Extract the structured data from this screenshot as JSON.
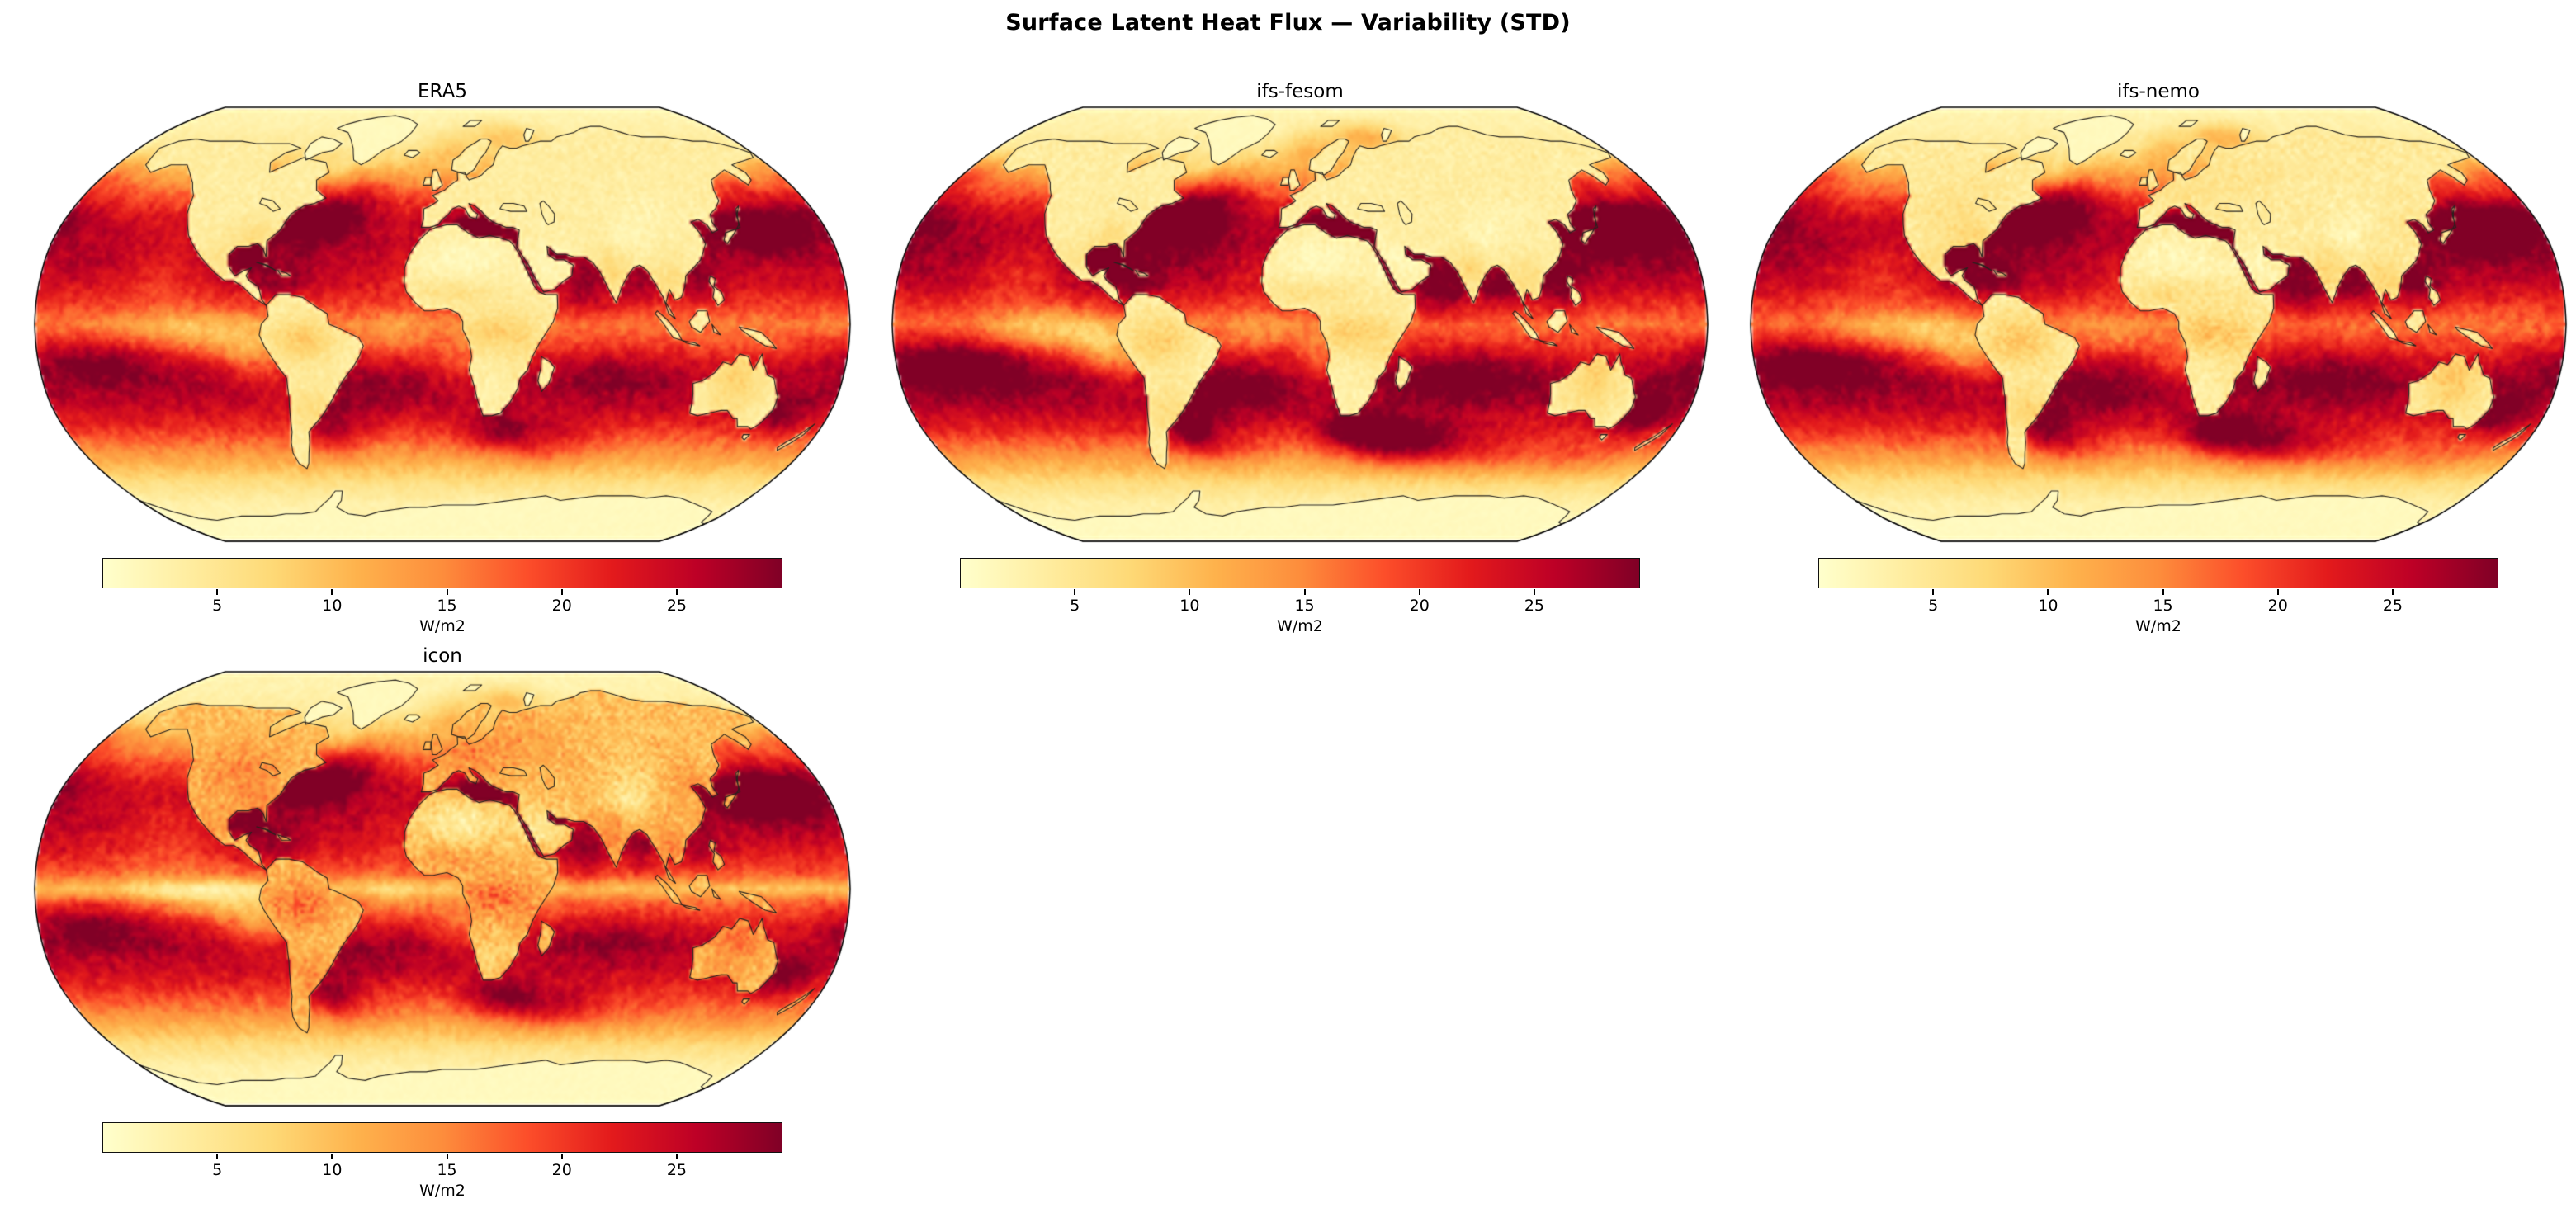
{
  "figure": {
    "title": "Surface Latent Heat Flux — Variability (STD)",
    "background_color": "#ffffff",
    "text_color": "#000000"
  },
  "chart_data": {
    "type": "heatmap",
    "subtype": "global-map-small-multiples",
    "projection": "Robinson",
    "basemap": "world-coastlines",
    "grid": {
      "rows": 2,
      "cols": 3,
      "occupied_cells": [
        [
          0,
          0
        ],
        [
          0,
          1
        ],
        [
          0,
          2
        ],
        [
          1,
          0
        ]
      ]
    },
    "colormap": {
      "name": "YlOrRd",
      "stops": [
        "#ffffcc",
        "#ffeda0",
        "#fed976",
        "#feb24c",
        "#fd8d3c",
        "#fc4e2a",
        "#e31a1c",
        "#bd0026",
        "#800026"
      ]
    },
    "colorbar": {
      "label": "W/m2",
      "ticks": [
        5,
        10,
        15,
        20,
        25
      ],
      "vmin": 0,
      "vmax": 29.6,
      "orientation": "horizontal"
    },
    "panels": [
      {
        "id": "era5",
        "title": "ERA5",
        "render": {
          "seed": 11,
          "ocean_gain": 1.0,
          "eddy_gain": 1.0,
          "south_extra": 0,
          "icon_extra": 0,
          "equator_pale": 0,
          "land_base": 3.5,
          "land_noise": 2.2,
          "land_tropics": 5,
          "land_mid": 0,
          "land_desert": 2.2
        }
      },
      {
        "id": "ifs-fesom",
        "title": "ifs-fesom",
        "render": {
          "seed": 23,
          "ocean_gain": 1.06,
          "eddy_gain": 1.3,
          "south_extra": 1,
          "icon_extra": 0,
          "equator_pale": 0,
          "land_base": 3.5,
          "land_noise": 2.4,
          "land_tropics": 5,
          "land_mid": 0,
          "land_desert": 2.2
        }
      },
      {
        "id": "ifs-nemo",
        "title": "ifs-nemo",
        "render": {
          "seed": 37,
          "ocean_gain": 1.04,
          "eddy_gain": 1.2,
          "south_extra": 0.7,
          "icon_extra": 0,
          "equator_pale": 0,
          "land_base": 4,
          "land_noise": 3,
          "land_tropics": 5.5,
          "land_mid": 1.5,
          "land_desert": 2.6
        }
      },
      {
        "id": "icon",
        "title": "icon",
        "render": {
          "seed": 51,
          "ocean_gain": 0.97,
          "eddy_gain": 1.1,
          "south_extra": 0.4,
          "icon_extra": 1,
          "equator_pale": 5,
          "land_base": 10,
          "land_noise": 5,
          "land_tropics": 7,
          "land_mid": 4.5,
          "land_desert": 6.5
        }
      }
    ],
    "field_summary": {
      "units": "W/m2",
      "value_range_displayed": [
        0,
        29.6
      ],
      "high_variability_regions": [
        "Gulf Stream / North Atlantic",
        "Kuroshio Extension (NW Pacific)",
        "Agulhas Return Current (S Indian Ocean)",
        "Brazil–Malvinas Confluence",
        "Mediterranean Sea",
        "Red Sea / Persian Gulf",
        "Arabian Sea",
        "subtropical trade-wind belts (~10–35° N/S)"
      ],
      "low_variability_regions": [
        "polar oceans",
        "Antarctica",
        "Greenland",
        "most land surfaces (except icon run)",
        "equatorial eastern Pacific cold tongue"
      ],
      "panel_differences": "ifs-fesom and ifs-nemo show stronger western-boundary-current and Southern Ocean maxima than ERA5; icon shows markedly higher variability over land"
    }
  }
}
